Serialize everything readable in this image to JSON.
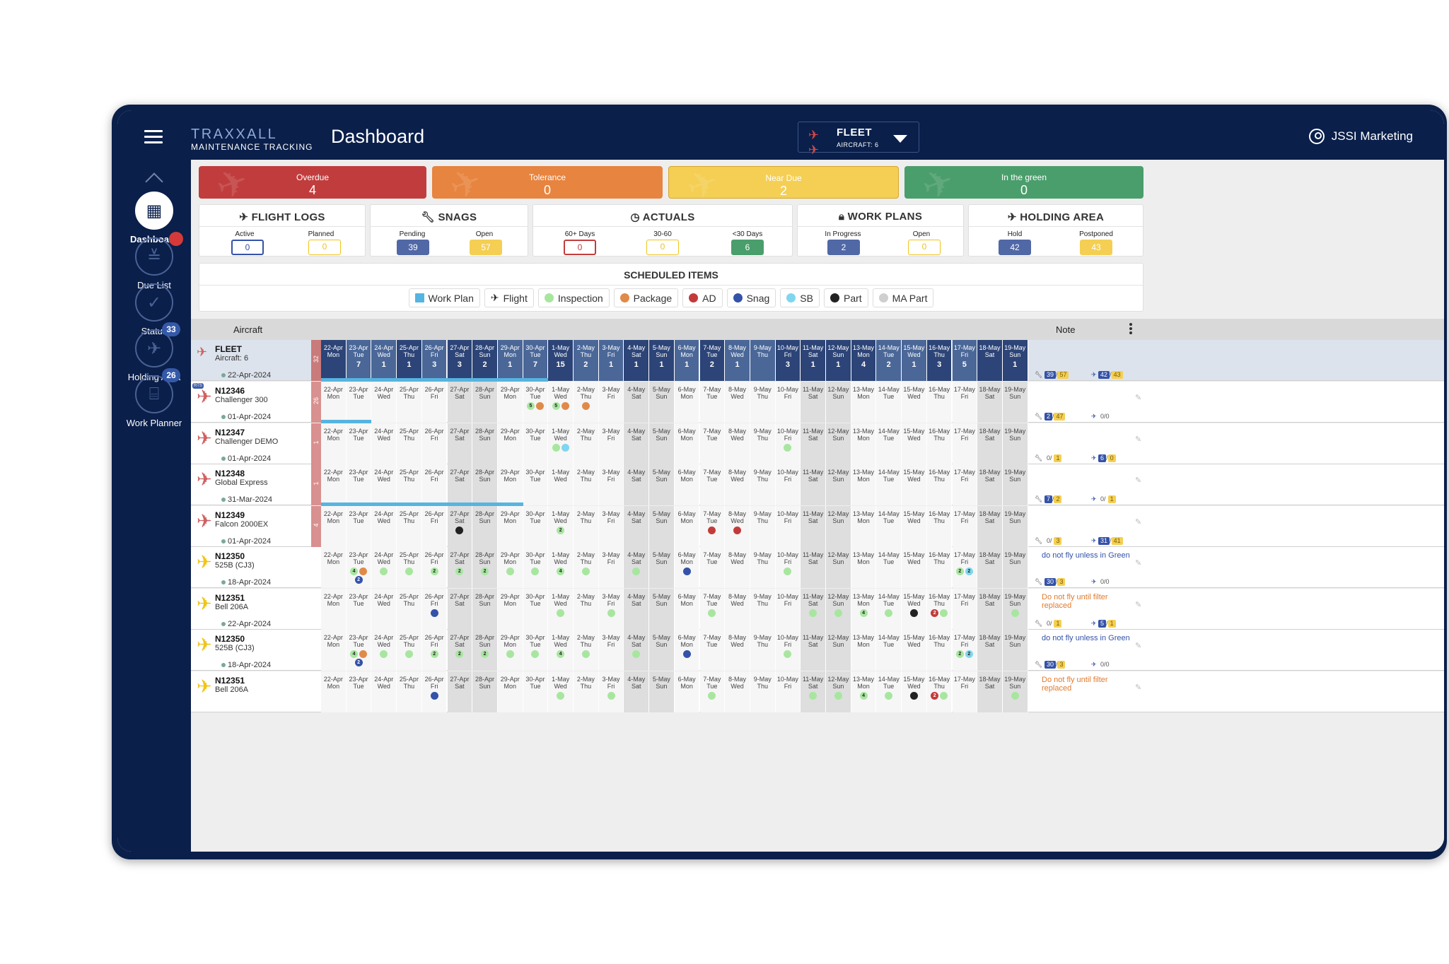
{
  "app": {
    "brand_top": "TRAXXALL",
    "brand_bottom": "MAINTENANCE TRACKING",
    "page_title": "Dashboard",
    "fleet_label": "FLEET",
    "fleet_count": "AIRCRAFT: 6",
    "user": "JSSI Marketing"
  },
  "colors": {
    "overdue": "#c13d3d",
    "tolerance": "#e7843f",
    "near_due": "#f4cf53",
    "green": "#4a9e6c",
    "fleet_blue": "#3b5fa3"
  },
  "sidebar": {
    "items": [
      {
        "label": "Dashboard",
        "icon": "dashboard-icon",
        "active": true
      },
      {
        "label": "Due List",
        "icon": "checklist-icon",
        "badge": ""
      },
      {
        "label": "Status",
        "icon": "check-icon"
      },
      {
        "label": "Holding Area",
        "icon": "plane-landing-icon",
        "badge": "33"
      },
      {
        "label": "Work Planner",
        "icon": "clipboard-icon",
        "badge": "26"
      }
    ]
  },
  "kpis": [
    {
      "label": "Overdue",
      "value": "4"
    },
    {
      "label": "Tolerance",
      "value": "0"
    },
    {
      "label": "Near Due",
      "value": "2"
    },
    {
      "label": "In the green",
      "value": "0"
    }
  ],
  "stats": [
    {
      "title": "FLIGHT LOGS",
      "icon": "plane-icon",
      "items": [
        {
          "label": "Active",
          "value": "0"
        },
        {
          "label": "Planned",
          "value": "0"
        }
      ]
    },
    {
      "title": "SNAGS",
      "icon": "wrench-icon",
      "items": [
        {
          "label": "Pending",
          "value": "39"
        },
        {
          "label": "Open",
          "value": "57"
        }
      ]
    },
    {
      "title": "ACTUALS",
      "icon": "clock-icon",
      "items": [
        {
          "label": "60+ Days",
          "value": "0"
        },
        {
          "label": "30-60",
          "value": "0"
        },
        {
          "label": "<30 Days",
          "value": "6"
        }
      ]
    },
    {
      "title": "WORK PLANS",
      "icon": "lock-icon",
      "items": [
        {
          "label": "In Progress",
          "value": "2"
        },
        {
          "label": "Open",
          "value": "0"
        }
      ]
    },
    {
      "title": "HOLDING AREA",
      "icon": "landing-icon",
      "items": [
        {
          "label": "Hold",
          "value": "42"
        },
        {
          "label": "Postponed",
          "value": "43"
        }
      ]
    }
  ],
  "scheduled": {
    "title": "SCHEDULED ITEMS",
    "legend": [
      {
        "label": "Work Plan",
        "color": "#56b4e0",
        "shape": "square"
      },
      {
        "label": "Flight",
        "color": "#f0c419",
        "shape": "plane"
      },
      {
        "label": "Inspection",
        "color": "#a8e6a0",
        "shape": "dot"
      },
      {
        "label": "Package",
        "color": "#e08a4a",
        "shape": "dot"
      },
      {
        "label": "AD",
        "color": "#c23b3b",
        "shape": "dot"
      },
      {
        "label": "Snag",
        "color": "#3452a8",
        "shape": "dot"
      },
      {
        "label": "SB",
        "color": "#7fd6ee",
        "shape": "dot"
      },
      {
        "label": "Part",
        "color": "#222222",
        "shape": "dot"
      },
      {
        "label": "MA Part",
        "color": "#cfcfcf",
        "shape": "dot"
      }
    ]
  },
  "grid": {
    "col_aircraft": "Aircraft",
    "col_note": "Note",
    "days": [
      {
        "d": "22-Apr",
        "w": "Mon"
      },
      {
        "d": "23-Apr",
        "w": "Tue"
      },
      {
        "d": "24-Apr",
        "w": "Wed"
      },
      {
        "d": "25-Apr",
        "w": "Thu"
      },
      {
        "d": "26-Apr",
        "w": "Fri"
      },
      {
        "d": "27-Apr",
        "w": "Sat"
      },
      {
        "d": "28-Apr",
        "w": "Sun"
      },
      {
        "d": "29-Apr",
        "w": "Mon"
      },
      {
        "d": "30-Apr",
        "w": "Tue"
      },
      {
        "d": "1-May",
        "w": "Wed"
      },
      {
        "d": "2-May",
        "w": "Thu"
      },
      {
        "d": "3-May",
        "w": "Fri"
      },
      {
        "d": "4-May",
        "w": "Sat"
      },
      {
        "d": "5-May",
        "w": "Sun"
      },
      {
        "d": "6-May",
        "w": "Mon"
      },
      {
        "d": "7-May",
        "w": "Tue"
      },
      {
        "d": "8-May",
        "w": "Wed"
      },
      {
        "d": "9-May",
        "w": "Thu"
      },
      {
        "d": "10-May",
        "w": "Fri"
      },
      {
        "d": "11-May",
        "w": "Sat"
      },
      {
        "d": "12-May",
        "w": "Sun"
      },
      {
        "d": "13-May",
        "w": "Mon"
      },
      {
        "d": "14-May",
        "w": "Tue"
      },
      {
        "d": "15-May",
        "w": "Wed"
      },
      {
        "d": "16-May",
        "w": "Thu"
      },
      {
        "d": "17-May",
        "w": "Fri"
      },
      {
        "d": "18-May",
        "w": "Sat"
      },
      {
        "d": "19-May",
        "w": "Sun"
      }
    ],
    "fleet": {
      "reg": "FLEET",
      "type": "Aircraft: 6",
      "date": "22-Apr-2024",
      "side": "32",
      "counts": [
        "",
        "7",
        "1",
        "1",
        "3",
        "3",
        "2",
        "1",
        "7",
        "15",
        "2",
        "1",
        "1",
        "1",
        "1",
        "2",
        "1",
        "",
        "3",
        "1",
        "1",
        "4",
        "2",
        "1",
        "3",
        "5",
        "",
        "1"
      ],
      "snag": "39",
      "snag2": "57",
      "hold": "42",
      "hold2": "43"
    },
    "aircraft": [
      {
        "reg": "N12346",
        "type": "Challenger 300",
        "date": "01-Apr-2024",
        "side": "26",
        "color": "#d06060",
        "rts": "RTS",
        "snag": "2",
        "snag2": "47",
        "hold": "0/0",
        "bar": [
          0,
          1
        ]
      },
      {
        "reg": "N12347",
        "type": "Challenger DEMO",
        "date": "01-Apr-2024",
        "side": "1",
        "color": "#d06060",
        "snag": "0/",
        "snag2": "1",
        "hold": "6",
        "hold2": "0"
      },
      {
        "reg": "N12348",
        "type": "Global Express",
        "date": "31-Mar-2024",
        "side": "1",
        "color": "#d06060",
        "snag": "7",
        "snag2": "2",
        "hold": "0/",
        "hold2": "1",
        "bar": [
          0,
          8
        ]
      },
      {
        "reg": "N12349",
        "type": "Falcon 2000EX",
        "date": "01-Apr-2024",
        "side": "4",
        "color": "#d06060",
        "snag": "0/",
        "snag2": "3",
        "hold": "31",
        "hold2": "41"
      },
      {
        "reg": "N12350",
        "type": "525B (CJ3)",
        "date": "18-Apr-2024",
        "color": "#f0c419",
        "note": "do not fly unless in Green",
        "note_color": "#3452a8",
        "snag": "30",
        "snag2": "3",
        "hold": "0/0"
      },
      {
        "reg": "N12351",
        "type": "Bell 206A",
        "date": "22-Apr-2024",
        "color": "#f0c419",
        "note": "Do not fly until filter replaced",
        "note_color": "#e07a2e",
        "snag": "0/",
        "snag2": "1",
        "hold": "5",
        "hold2": "1"
      },
      {
        "reg": "N12350",
        "type": "525B (CJ3)",
        "date": "18-Apr-2024",
        "color": "#f0c419",
        "note": "do not fly unless in Green",
        "note_color": "#3452a8",
        "snag": "30",
        "snag2": "3",
        "hold": "0/0"
      },
      {
        "reg": "N12351",
        "type": "Bell 206A",
        "date": "",
        "color": "#f0c419",
        "note": "Do not fly until filter replaced",
        "note_color": "#e07a2e"
      }
    ]
  }
}
